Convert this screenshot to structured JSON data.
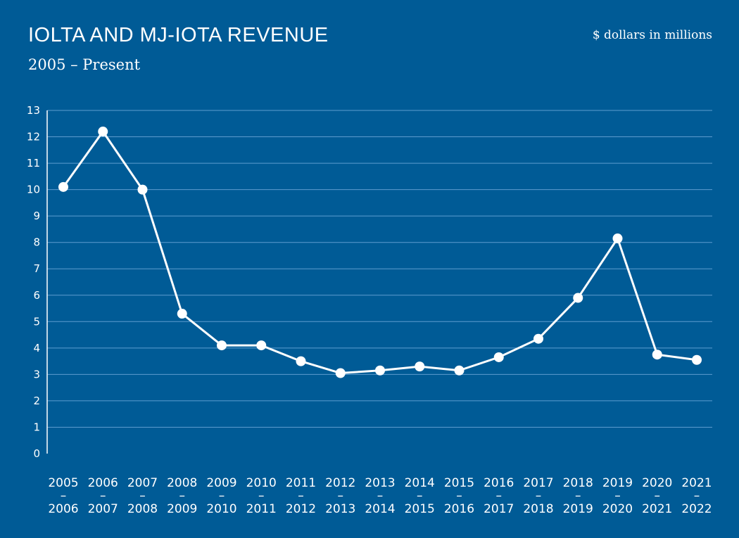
{
  "header": {
    "title": "IOLTA AND MJ-IOTA REVENUE",
    "subtitle": "2005 – Present",
    "unit_note": "$ dollars in millions"
  },
  "colors": {
    "background": "#005b96",
    "line": "#ffffff",
    "grid": "#5d9ccf"
  },
  "chart_data": {
    "type": "line",
    "title": "IOLTA AND MJ-IOTA REVENUE",
    "subtitle": "2005 – Present",
    "ylabel": "$ dollars in millions",
    "xlabel": "",
    "ylim": [
      0,
      13
    ],
    "yticks": [
      "0",
      "1",
      "2",
      "3",
      "4",
      "5",
      "6",
      "7",
      "8",
      "9",
      "10",
      "11",
      "12",
      "13"
    ],
    "grid": true,
    "legend": "none",
    "categories": [
      {
        "top": "2005",
        "sep": "–",
        "bottom": "2006"
      },
      {
        "top": "2006",
        "sep": "–",
        "bottom": "2007"
      },
      {
        "top": "2007",
        "sep": "–",
        "bottom": "2008"
      },
      {
        "top": "2008",
        "sep": "–",
        "bottom": "2009"
      },
      {
        "top": "2009",
        "sep": "–",
        "bottom": "2010"
      },
      {
        "top": "2010",
        "sep": "–",
        "bottom": "2011"
      },
      {
        "top": "2011",
        "sep": "–",
        "bottom": "2012"
      },
      {
        "top": "2012",
        "sep": "–",
        "bottom": "2013"
      },
      {
        "top": "2013",
        "sep": "–",
        "bottom": "2014"
      },
      {
        "top": "2014",
        "sep": "–",
        "bottom": "2015"
      },
      {
        "top": "2015",
        "sep": "–",
        "bottom": "2016"
      },
      {
        "top": "2016",
        "sep": "–",
        "bottom": "2017"
      },
      {
        "top": "2017",
        "sep": "–",
        "bottom": "2018"
      },
      {
        "top": "2018",
        "sep": "–",
        "bottom": "2019"
      },
      {
        "top": "2019",
        "sep": "–",
        "bottom": "2020"
      },
      {
        "top": "2020",
        "sep": "–",
        "bottom": "2021"
      },
      {
        "top": "2021",
        "sep": "–",
        "bottom": "2022"
      }
    ],
    "series": [
      {
        "values": [
          10.1,
          12.2,
          10.0,
          5.3,
          4.1,
          4.1,
          3.5,
          3.05,
          3.15,
          3.3,
          3.15,
          3.65,
          4.35,
          5.9,
          8.15,
          3.75,
          3.55
        ]
      }
    ]
  }
}
